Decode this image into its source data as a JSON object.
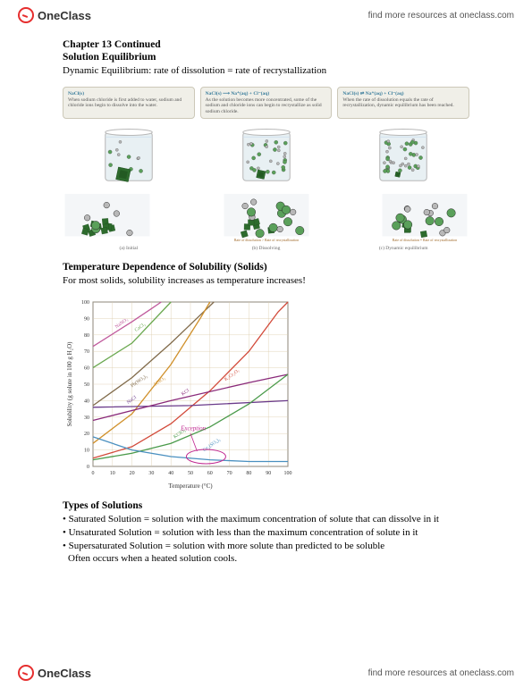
{
  "header": {
    "logo_text": "OneClass",
    "link_text": "find more resources at oneclass.com"
  },
  "footer": {
    "logo_text": "OneClass",
    "link_text": "find more resources at oneclass.com"
  },
  "doc": {
    "chapter_title": "Chapter 13 Continued",
    "section_title": "Solution Equilibrium",
    "dyn_eq_text": "Dynamic Equilibrium: rate of dissolution = rate of recrystallization",
    "temp_title": "Temperature Dependence of Solubility (Solids)",
    "temp_text": "For most solids, solubility increases as temperature increases!",
    "types_title": "Types of Solutions",
    "types": {
      "sat": "• Saturated Solution = solution with the maximum concentration of solute that can dissolve in it",
      "unsat": "• Unsaturated Solution = solution with less than the maximum concentration of solute in it",
      "super": "• Supersaturated Solution = solution with more solute than predicted to be soluble",
      "often": "Often occurs when a heated solution cools."
    }
  },
  "equil": {
    "captions": [
      {
        "head": "NaCl(s)",
        "body": "When sodium chloride is first added to water, sodium and chloride ions begin to dissolve into the water."
      },
      {
        "head": "NaCl(s) ⟶ Na⁺(aq) + Cl⁻(aq)",
        "body": "As the solution becomes more concentrated, some of the sodium and chloride ions can begin to recrystallize as solid sodium chloride."
      },
      {
        "head": "NaCl(s) ⇌ Na⁺(aq) + Cl⁻(aq)",
        "body": "When the rate of dissolution equals the rate of recrystallization, dynamic equilibrium has been reached."
      }
    ],
    "sub_captions": [
      "(a) Initial",
      "(b) Dissolving",
      "(c) Dynamic equilibrium"
    ],
    "rate_labels": [
      "",
      "Rate of dissolution > Rate of recrystallization",
      "Rate of dissolution = Rate of recrystallization"
    ],
    "colors": {
      "beaker_outline": "#b8b8b8",
      "water": "#e8f0f3",
      "na_ion": "#b8b8b8",
      "cl_ion": "#5aa05a",
      "crystal": "#2d6b2d",
      "crystal_dark": "#1a4a1a",
      "bg_plate": "#f0efe8"
    }
  },
  "chart": {
    "type": "line",
    "xlabel": "Temperature (°C)",
    "ylabel": "Solubility (g solute in 100 g H₂O)",
    "xlim": [
      0,
      100
    ],
    "ylim": [
      0,
      100
    ],
    "xtick_step": 10,
    "ytick_step": 10,
    "label_fontsize": 7,
    "tick_fontsize": 6,
    "background_color": "#ffffff",
    "grid_color": "#d9c9a8",
    "axis_color": "#333333",
    "exception_label": "Exception",
    "exception_color": "#c02890",
    "series": [
      {
        "name": "NaNO₃",
        "color": "#c05a9c",
        "points": [
          [
            0,
            73
          ],
          [
            20,
            88
          ],
          [
            30,
            96
          ],
          [
            35,
            100
          ]
        ]
      },
      {
        "name": "CaCl₂",
        "color": "#6aa84f",
        "points": [
          [
            0,
            60
          ],
          [
            20,
            75
          ],
          [
            40,
            100
          ]
        ]
      },
      {
        "name": "Pb(NO₃)₂",
        "color": "#806a4a",
        "points": [
          [
            0,
            37
          ],
          [
            20,
            54
          ],
          [
            40,
            75
          ],
          [
            55,
            92
          ],
          [
            62,
            100
          ]
        ]
      },
      {
        "name": "KNO₃",
        "color": "#d0902a",
        "points": [
          [
            0,
            14
          ],
          [
            20,
            32
          ],
          [
            40,
            62
          ],
          [
            55,
            90
          ],
          [
            60,
            100
          ]
        ]
      },
      {
        "name": "K₂Cr₂O₇",
        "color": "#d24a3a",
        "points": [
          [
            0,
            5
          ],
          [
            20,
            12
          ],
          [
            40,
            26
          ],
          [
            60,
            46
          ],
          [
            80,
            70
          ],
          [
            95,
            94
          ],
          [
            100,
            100
          ]
        ]
      },
      {
        "name": "NaCl",
        "color": "#6a3a8a",
        "points": [
          [
            0,
            36
          ],
          [
            50,
            37
          ],
          [
            100,
            40
          ]
        ]
      },
      {
        "name": "KCl",
        "color": "#8a2a7a",
        "points": [
          [
            0,
            28
          ],
          [
            40,
            40
          ],
          [
            80,
            51
          ],
          [
            100,
            56
          ]
        ]
      },
      {
        "name": "KClO₃",
        "color": "#4a9a4a",
        "points": [
          [
            0,
            4
          ],
          [
            20,
            8
          ],
          [
            40,
            14
          ],
          [
            60,
            24
          ],
          [
            80,
            38
          ],
          [
            100,
            56
          ]
        ]
      },
      {
        "name": "Ce₂(SO₄)₃",
        "color": "#4a90c0",
        "points": [
          [
            0,
            18
          ],
          [
            20,
            10
          ],
          [
            40,
            6
          ],
          [
            60,
            4
          ],
          [
            80,
            3
          ],
          [
            100,
            3
          ]
        ]
      }
    ],
    "series_label_positions": {
      "NaNO₃": [
        12,
        84
      ],
      "CaCl₂": [
        22,
        82
      ],
      "Pb(NO₃)₂": [
        20,
        48
      ],
      "KNO₃": [
        32,
        49
      ],
      "K₂Cr₂O₇": [
        68,
        52
      ],
      "NaCl": [
        18,
        38
      ],
      "KCl": [
        46,
        43
      ],
      "KClO₃": [
        42,
        17
      ],
      "Ce₂(SO₄)₃": [
        57,
        9
      ]
    }
  }
}
